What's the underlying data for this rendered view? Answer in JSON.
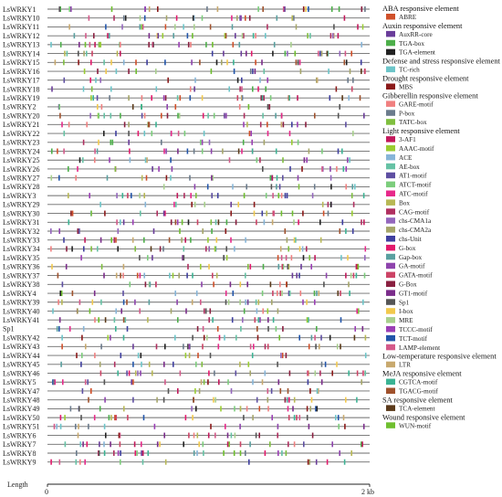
{
  "genes": [
    "LsWRKY1",
    "LsWRKY10",
    "LsWRKY11",
    "LsWRKY12",
    "LsWRKY13",
    "LsWRKY14",
    "LsWRKY15",
    "LsWRKY16",
    "LsWRKY17",
    "LsWRKY18",
    "LsWRKY19",
    "LsWRKY2",
    "LsWRKY20",
    "LsWRKY21",
    "LsWRKY22",
    "LsWRKY23",
    "LsWRKY24",
    "LsWRKY25",
    "LsWRKY26",
    "LsWRKY27",
    "LsWRKY28",
    "LsWRKY3",
    "LsWRKY29",
    "LsWRKY30",
    "LsWRKY31",
    "LsWRKY32",
    "LsWRKY33",
    "LsWRKY34",
    "LsWRKY35",
    "LsWRKY36",
    "LsWRKY37",
    "LsWRKY38",
    "LsWRKY4",
    "LsWRKY39",
    "LsWRKY40",
    "LsWRKY41",
    "Sp1",
    "LsWRKY42",
    "LsWRKY43",
    "LsWRKY44",
    "LsWRKY45",
    "LsWRKY46",
    "LsWRKY5",
    "LsWRKY47",
    "LsWRKY48",
    "LsWRKY49",
    "LsWRKY50",
    "LsWRKY51",
    "LsWRKY6",
    "LsWRKY7",
    "LsWRKY8",
    "LsWRKY9"
  ],
  "axis": {
    "label": "Length",
    "ticks": [
      "0",
      "2 kb"
    ]
  },
  "legend": [
    {
      "category": "ABA responsive element",
      "items": [
        {
          "name": "ABRE",
          "color": "#d0502a"
        }
      ]
    },
    {
      "category": "Auxin responsive element",
      "items": [
        {
          "name": "AuxRR-core",
          "color": "#6a3d9a"
        },
        {
          "name": "TGA-box",
          "color": "#4daf4a"
        },
        {
          "name": "TGA-element",
          "color": "#222222"
        }
      ]
    },
    {
      "category": "Defense and stress responsive element",
      "items": [
        {
          "name": "TC-rich",
          "color": "#6cc5c9"
        }
      ]
    },
    {
      "category": "Drought responsive element",
      "items": [
        {
          "name": "MBS",
          "color": "#8b1a1a"
        }
      ]
    },
    {
      "category": "Gibberellin responsive element",
      "items": [
        {
          "name": "GARE-motif",
          "color": "#f08080"
        },
        {
          "name": "P-box",
          "color": "#6b7b8c"
        },
        {
          "name": "TATC-box",
          "color": "#7fbf3f"
        }
      ]
    },
    {
      "category": "Light responsive element",
      "items": [
        {
          "name": "3-AF1",
          "color": "#c2185b"
        },
        {
          "name": "AAAC-motif",
          "color": "#9acd32"
        },
        {
          "name": "ACE",
          "color": "#87b5d8"
        },
        {
          "name": "AE-box",
          "color": "#66c2a5"
        },
        {
          "name": "AT1-motif",
          "color": "#5e4fa2"
        },
        {
          "name": "ATCT-motif",
          "color": "#7ccd7c"
        },
        {
          "name": "ATC-motif",
          "color": "#e7298a"
        },
        {
          "name": "Box",
          "color": "#b8b855"
        },
        {
          "name": "CAG-motif",
          "color": "#b03060"
        },
        {
          "name": "chs-CMA1a",
          "color": "#9467bd"
        },
        {
          "name": "chs-CMA2a",
          "color": "#a6a66a"
        },
        {
          "name": "chs-Unit",
          "color": "#3f3f9f"
        },
        {
          "name": "G-box",
          "color": "#e31a6c"
        },
        {
          "name": "Gap-box",
          "color": "#5aa0a0"
        },
        {
          "name": "GA-motif",
          "color": "#8e44ad"
        },
        {
          "name": "GATA-motif",
          "color": "#cc4466"
        },
        {
          "name": "G-Box",
          "color": "#8a2040"
        },
        {
          "name": "GT1-motif",
          "color": "#7b2d8b"
        },
        {
          "name": "Sp1",
          "color": "#555555"
        },
        {
          "name": "I-box",
          "color": "#f2c94c"
        },
        {
          "name": "MRE",
          "color": "#a8d08d"
        },
        {
          "name": "TCCC-motif",
          "color": "#9b3fb5"
        },
        {
          "name": "TCT-motif",
          "color": "#2255aa"
        },
        {
          "name": "LAMP-element",
          "color": "#d45a8a"
        }
      ]
    },
    {
      "category": "Low-temperature responsive element",
      "items": [
        {
          "name": "LTR",
          "color": "#c8a96e"
        }
      ]
    },
    {
      "category": "MeJA responsive element",
      "items": [
        {
          "name": "CGTCA-motif",
          "color": "#3cb394"
        },
        {
          "name": "TGACG-motif",
          "color": "#a0522d"
        }
      ]
    },
    {
      "category": "SA responsive element",
      "items": [
        {
          "name": "TCA-element",
          "color": "#5b3a1a"
        }
      ]
    },
    {
      "category": "Wound responsive element",
      "items": [
        {
          "name": "WUN-motif",
          "color": "#6fbf2f"
        }
      ]
    }
  ]
}
